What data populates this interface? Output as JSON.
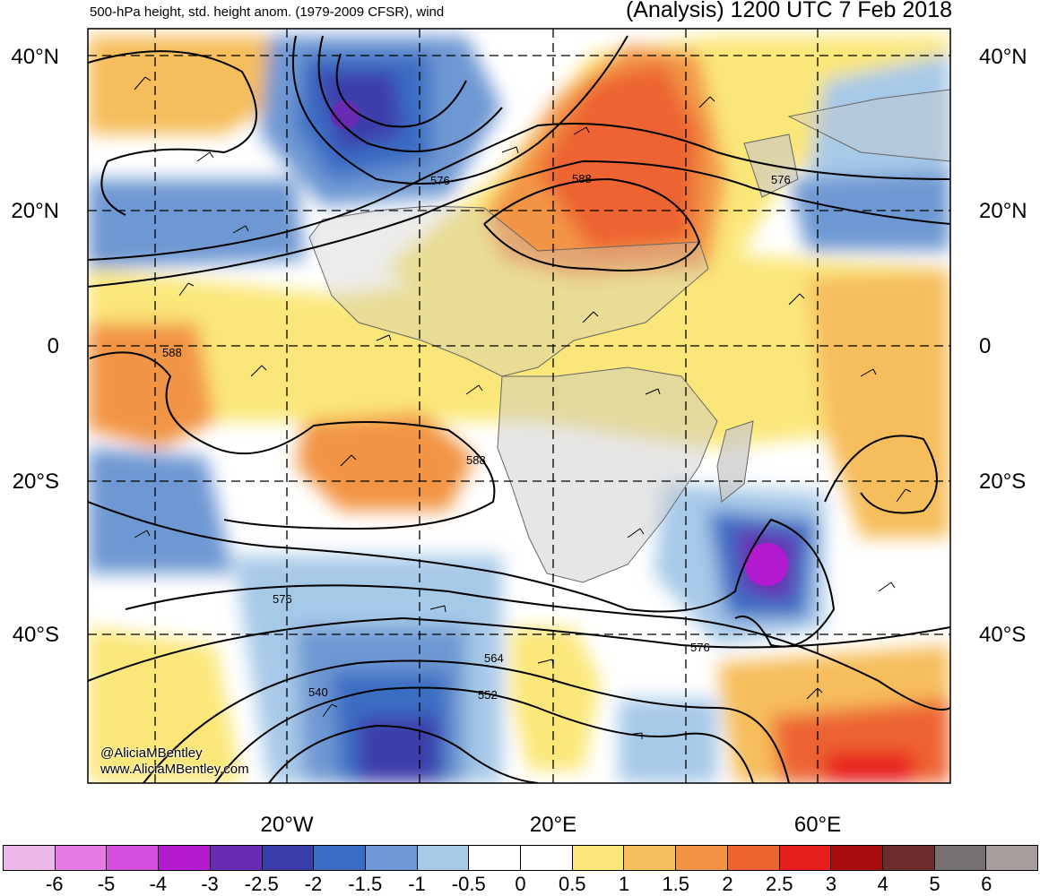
{
  "header": {
    "left_title": "500-hPa height, std. height anom. (1979-2009 CFSR), wind",
    "right_title": "(Analysis) 1200 UTC 7 Feb 2018"
  },
  "axes": {
    "lat_labels": [
      "40°N",
      "20°N",
      "0",
      "20°S",
      "40°S"
    ],
    "lon_labels": [
      "20°W",
      "20°E",
      "60°E"
    ]
  },
  "contour_labels": [
    "576",
    "588",
    "576",
    "588",
    "588",
    "576",
    "576",
    "564",
    "552",
    "540"
  ],
  "watermark": [
    "@AliciaMBentley",
    "www.AliciaMBentley.com"
  ],
  "colorbar": {
    "colors": [
      "#ebb8e8",
      "#e87ae6",
      "#d64fdf",
      "#b41ad0",
      "#6a2bb3",
      "#3c3cab",
      "#3a6dc3",
      "#6e98d3",
      "#a7c9e8",
      "#ffffff",
      "#ffffff",
      "#fbe779",
      "#f6bd5c",
      "#f29444",
      "#ed6431",
      "#e81d1d",
      "#a80d0d",
      "#6d2b2b",
      "#777070",
      "#a89e9e"
    ],
    "labels": [
      "-6",
      "-5",
      "-4",
      "-3",
      "-2.5",
      "-2",
      "-1.5",
      "-1",
      "-0.5",
      "0",
      "0.5",
      "1",
      "1.5",
      "2",
      "2.5",
      "3",
      "4",
      "5",
      "6"
    ]
  }
}
